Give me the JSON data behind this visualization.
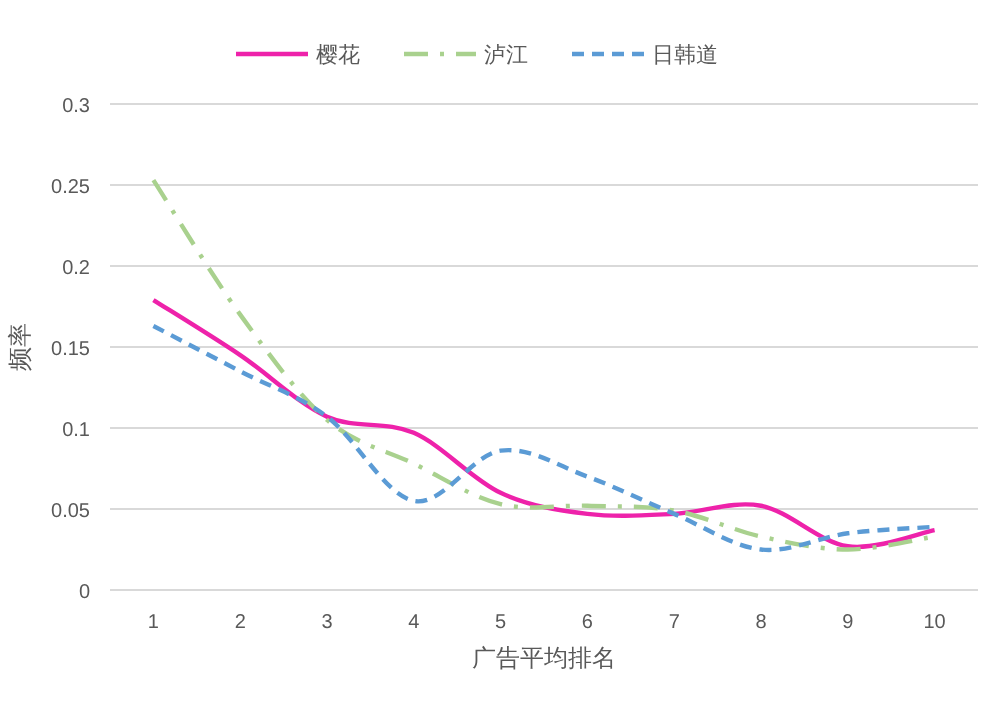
{
  "chart_data": {
    "type": "line",
    "xlabel": "广告平均排名",
    "ylabel": "频率",
    "categories": [
      "1",
      "2",
      "3",
      "4",
      "5",
      "6",
      "7",
      "8",
      "9",
      "10"
    ],
    "ylim": [
      0,
      0.3
    ],
    "yticks": [
      {
        "value": 0,
        "label": "0"
      },
      0.05,
      0.1,
      0.15,
      0.2,
      0.25,
      0.3
    ],
    "grid": "y",
    "legend": "top",
    "marker": "none",
    "series": [
      {
        "name": "樱花",
        "color": "#ee22aa",
        "line_style": "solid",
        "values": [
          0.179,
          0.145,
          0.107,
          0.097,
          0.06,
          0.047,
          0.047,
          0.052,
          0.027,
          0.037
        ]
      },
      {
        "name": "泸江",
        "color": "#a9d18e",
        "line_style": "dashdot",
        "values": [
          0.253,
          0.17,
          0.105,
          0.078,
          0.053,
          0.052,
          0.049,
          0.033,
          0.025,
          0.033
        ]
      },
      {
        "name": "日韩道",
        "color": "#5b9bd5",
        "line_style": "dashed",
        "values": [
          0.163,
          0.135,
          0.107,
          0.055,
          0.086,
          0.07,
          0.047,
          0.025,
          0.035,
          0.039
        ]
      }
    ]
  }
}
